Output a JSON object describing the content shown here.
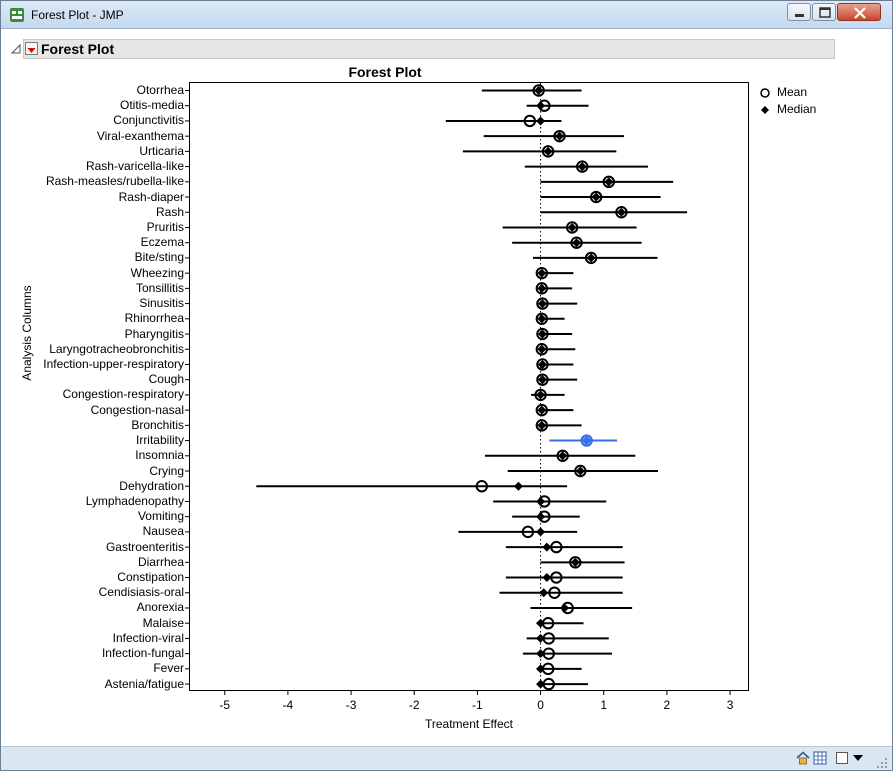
{
  "window": {
    "title": "Forest Plot - JMP"
  },
  "outline": {
    "title": "Forest Plot"
  },
  "chart_data": {
    "type": "scatter",
    "title": "Forest Plot",
    "xlabel": "Treatment Effect",
    "ylabel": "Analysis Columns",
    "xlim": [
      -5.55,
      3.3
    ],
    "x_ticks": [
      "-5",
      "-4",
      "-3",
      "-2",
      "-1",
      "0",
      "1",
      "2",
      "3"
    ],
    "reference_line_x": 0,
    "legend": {
      "placement": "top-right",
      "entries": [
        "Mean",
        "Median"
      ]
    },
    "series": [
      {
        "name": "Mean",
        "marker": "open-circle"
      },
      {
        "name": "Median",
        "marker": "filled-diamond"
      }
    ],
    "highlight_color": "#3a6ee8",
    "rows": [
      {
        "label": "Otorrhea",
        "mean": -0.03,
        "median": -0.03,
        "lower": -0.93,
        "upper": 0.65
      },
      {
        "label": "Otitis-media",
        "mean": 0.06,
        "median": 0.0,
        "lower": -0.22,
        "upper": 0.76
      },
      {
        "label": "Conjunctivitis",
        "mean": -0.17,
        "median": 0.0,
        "lower": -1.5,
        "upper": 0.33
      },
      {
        "label": "Viral-exanthema",
        "mean": 0.3,
        "median": 0.3,
        "lower": -0.9,
        "upper": 1.32
      },
      {
        "label": "Urticaria",
        "mean": 0.12,
        "median": 0.12,
        "lower": -1.23,
        "upper": 1.2
      },
      {
        "label": "Rash-varicella-like",
        "mean": 0.66,
        "median": 0.66,
        "lower": -0.25,
        "upper": 1.7
      },
      {
        "label": "Rash-measles/rubella-like",
        "mean": 1.08,
        "median": 1.08,
        "lower": 0.0,
        "upper": 2.1
      },
      {
        "label": "Rash-diaper",
        "mean": 0.88,
        "median": 0.88,
        "lower": 0.0,
        "upper": 1.9
      },
      {
        "label": "Rash",
        "mean": 1.28,
        "median": 1.28,
        "lower": 0.0,
        "upper": 2.32
      },
      {
        "label": "Pruritis",
        "mean": 0.5,
        "median": 0.5,
        "lower": -0.6,
        "upper": 1.52
      },
      {
        "label": "Eczema",
        "mean": 0.57,
        "median": 0.57,
        "lower": -0.45,
        "upper": 1.6
      },
      {
        "label": "Bite/sting",
        "mean": 0.8,
        "median": 0.8,
        "lower": -0.12,
        "upper": 1.85
      },
      {
        "label": "Wheezing",
        "mean": 0.02,
        "median": 0.02,
        "lower": 0.0,
        "upper": 0.52
      },
      {
        "label": "Tonsillitis",
        "mean": 0.02,
        "median": 0.02,
        "lower": 0.0,
        "upper": 0.5
      },
      {
        "label": "Sinusitis",
        "mean": 0.03,
        "median": 0.03,
        "lower": 0.0,
        "upper": 0.58
      },
      {
        "label": "Rhinorrhea",
        "mean": 0.02,
        "median": 0.02,
        "lower": 0.0,
        "upper": 0.38
      },
      {
        "label": "Pharyngitis",
        "mean": 0.03,
        "median": 0.03,
        "lower": 0.0,
        "upper": 0.5
      },
      {
        "label": "Laryngotracheobronchitis",
        "mean": 0.02,
        "median": 0.02,
        "lower": 0.0,
        "upper": 0.55
      },
      {
        "label": "Infection-upper-respiratory",
        "mean": 0.03,
        "median": 0.03,
        "lower": 0.0,
        "upper": 0.52
      },
      {
        "label": "Cough",
        "mean": 0.03,
        "median": 0.03,
        "lower": 0.0,
        "upper": 0.58
      },
      {
        "label": "Congestion-respiratory",
        "mean": 0.0,
        "median": 0.0,
        "lower": -0.15,
        "upper": 0.38
      },
      {
        "label": "Congestion-nasal",
        "mean": 0.02,
        "median": 0.02,
        "lower": 0.0,
        "upper": 0.52
      },
      {
        "label": "Bronchitis",
        "mean": 0.02,
        "median": 0.02,
        "lower": 0.0,
        "upper": 0.65
      },
      {
        "label": "Irritability",
        "mean": 0.73,
        "median": 0.73,
        "lower": 0.14,
        "upper": 1.21,
        "highlight": true
      },
      {
        "label": "Insomnia",
        "mean": 0.35,
        "median": 0.35,
        "lower": -0.88,
        "upper": 1.5
      },
      {
        "label": "Crying",
        "mean": 0.63,
        "median": 0.63,
        "lower": -0.52,
        "upper": 1.86
      },
      {
        "label": "Dehydration",
        "mean": -0.93,
        "median": -0.35,
        "lower": -4.5,
        "upper": 0.42
      },
      {
        "label": "Lymphadenopathy",
        "mean": 0.06,
        "median": 0.0,
        "lower": -0.75,
        "upper": 1.04
      },
      {
        "label": "Vomiting",
        "mean": 0.06,
        "median": 0.0,
        "lower": -0.45,
        "upper": 0.62
      },
      {
        "label": "Nausea",
        "mean": -0.2,
        "median": 0.0,
        "lower": -1.3,
        "upper": 0.58
      },
      {
        "label": "Gastroenteritis",
        "mean": 0.25,
        "median": 0.1,
        "lower": -0.55,
        "upper": 1.3
      },
      {
        "label": "Diarrhea",
        "mean": 0.55,
        "median": 0.55,
        "lower": 0.0,
        "upper": 1.33
      },
      {
        "label": "Constipation",
        "mean": 0.25,
        "median": 0.1,
        "lower": -0.55,
        "upper": 1.3
      },
      {
        "label": "Cendisiasis-oral",
        "mean": 0.22,
        "median": 0.05,
        "lower": -0.65,
        "upper": 1.3
      },
      {
        "label": "Anorexia",
        "mean": 0.43,
        "median": 0.38,
        "lower": -0.16,
        "upper": 1.45
      },
      {
        "label": "Malaise",
        "mean": 0.12,
        "median": 0.0,
        "lower": -0.06,
        "upper": 0.68
      },
      {
        "label": "Infection-viral",
        "mean": 0.13,
        "median": 0.0,
        "lower": -0.22,
        "upper": 1.08
      },
      {
        "label": "Infection-fungal",
        "mean": 0.13,
        "median": 0.0,
        "lower": -0.28,
        "upper": 1.13
      },
      {
        "label": "Fever",
        "mean": 0.12,
        "median": 0.0,
        "lower": -0.05,
        "upper": 0.65
      },
      {
        "label": "Astenia/fatigue",
        "mean": 0.13,
        "median": 0.0,
        "lower": 0.0,
        "upper": 0.75
      }
    ]
  }
}
